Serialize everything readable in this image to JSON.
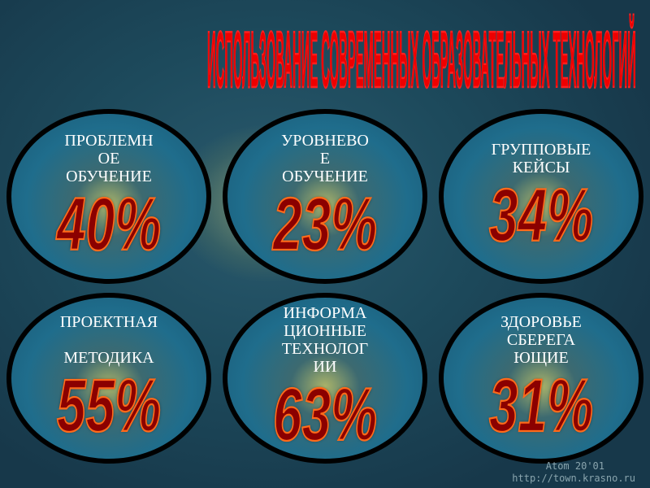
{
  "title": "ИСПОЛЬЗОВАНИЕ СОВРЕМЕННЫХ ОБРАЗОВАТЕЛЬНЫХ ТЕХНОЛОГИЙ",
  "items": [
    {
      "label_lines": [
        "ПРОБЛЕМН",
        "ОЕ",
        "ОБУЧЕНИЕ"
      ],
      "percent": "40%"
    },
    {
      "label_lines": [
        "УРОВНЕВО",
        "Е",
        "ОБУЧЕНИЕ"
      ],
      "percent": "23%"
    },
    {
      "label_lines": [
        "ГРУППОВЫЕ",
        "КЕЙСЫ"
      ],
      "percent": "34%"
    },
    {
      "label_lines": [
        "ПРОЕКТНАЯ",
        "",
        "МЕТОДИКА"
      ],
      "percent": "55%"
    },
    {
      "label_lines": [
        "ИНФОРМА",
        "ЦИОННЫЕ",
        "ТЕХНОЛОГ",
        "ИИ"
      ],
      "percent": "63%"
    },
    {
      "label_lines": [
        "ЗДОРОВЬЕ",
        "СБЕРЕГА",
        "ЮЩИЕ"
      ],
      "percent": "31%"
    }
  ],
  "footer": {
    "line1": "Atom 20'01",
    "line2": "http://town.krasno.ru"
  },
  "colors": {
    "percent_fill": "#8b0000",
    "percent_outline": "#ff6a1a",
    "title": "#ee0000",
    "ellipse_border": "#000000"
  }
}
